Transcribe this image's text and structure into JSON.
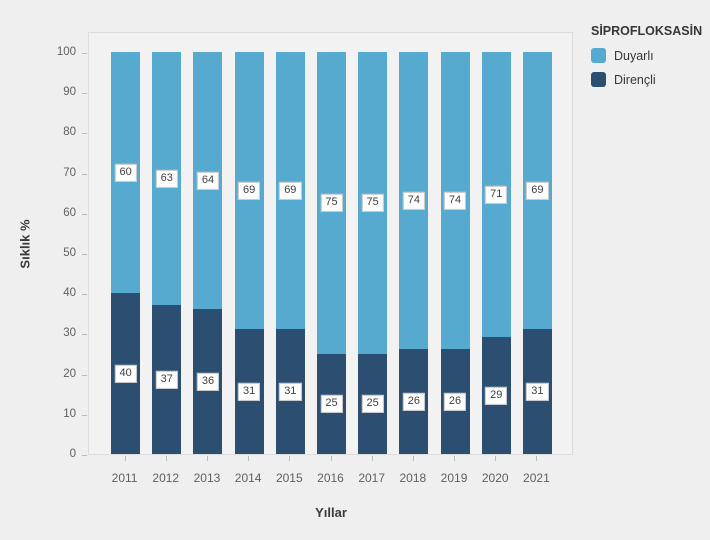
{
  "chart_data": {
    "type": "bar",
    "stacked": true,
    "percent_stacked": true,
    "categories": [
      "2011",
      "2012",
      "2013",
      "2014",
      "2015",
      "2016",
      "2017",
      "2018",
      "2019",
      "2020",
      "2021"
    ],
    "series": [
      {
        "name": "Duyarlı",
        "color": "#57aacf",
        "values": [
          60,
          63,
          64,
          69,
          69,
          75,
          75,
          74,
          74,
          71,
          69
        ]
      },
      {
        "name": "Dirençli",
        "color": "#2b4e71",
        "values": [
          40,
          37,
          36,
          31,
          31,
          25,
          25,
          26,
          26,
          29,
          31
        ]
      }
    ],
    "xlabel": "Yıllar",
    "ylabel": "Sıklık %",
    "ylim": [
      0,
      100
    ],
    "yticks": [
      0,
      10,
      20,
      30,
      40,
      50,
      60,
      70,
      80,
      90,
      100
    ],
    "legend_title": "SİPROFLOKSASİN",
    "legend_position": "top-right",
    "grid": false,
    "bar_labels": true,
    "panel_background": "#f2f2f2",
    "page_background": "#efefef"
  }
}
